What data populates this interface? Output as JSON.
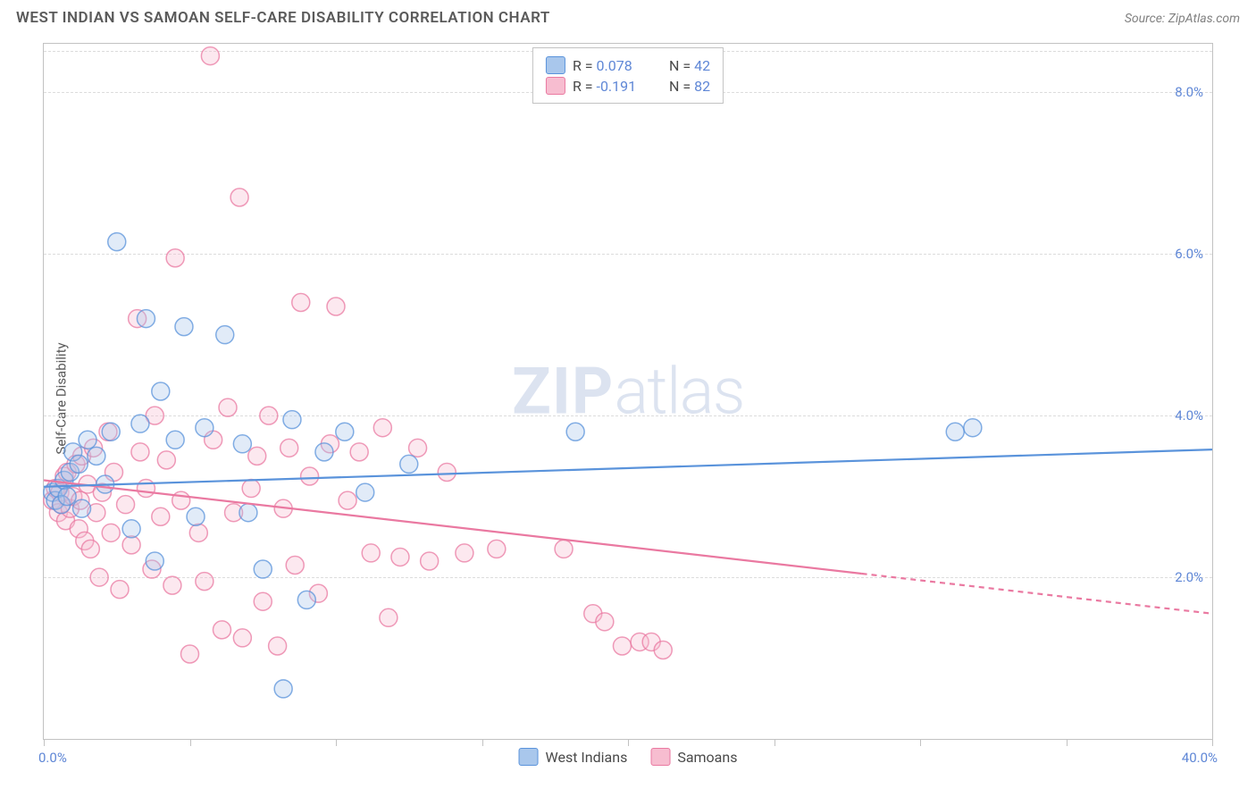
{
  "header": {
    "title": "WEST INDIAN VS SAMOAN SELF-CARE DISABILITY CORRELATION CHART",
    "source": "Source: ZipAtlas.com"
  },
  "watermark": {
    "zip": "ZIP",
    "atlas": "atlas"
  },
  "chart": {
    "type": "scatter",
    "ylabel": "Self-Care Disability",
    "background_color": "#ffffff",
    "grid_color": "#dcdcdc",
    "axis_color": "#c2c2c2",
    "tick_label_color": "#5f87d6",
    "xlim": [
      0,
      40
    ],
    "ylim": [
      0,
      8.6
    ],
    "yticks": [
      2.0,
      4.0,
      6.0,
      8.0
    ],
    "ytick_labels": [
      "2.0%",
      "4.0%",
      "6.0%",
      "8.0%"
    ],
    "xticks": [
      0,
      5,
      10,
      15,
      20,
      25,
      30,
      35,
      40
    ],
    "xlabel_start": "0.0%",
    "xlabel_end": "40.0%",
    "marker_radius": 10,
    "marker_fill_opacity": 0.35,
    "marker_stroke_width": 1.5,
    "line_width": 2.2
  },
  "series": {
    "blue": {
      "label": "West Indians",
      "r_label": "R = ",
      "r_value": "0.078",
      "n_label": "N = ",
      "n_value": "42",
      "color": "#5a93db",
      "fill": "#a9c7ec",
      "trend": {
        "y_at_x0": 3.12,
        "y_at_x40": 3.58,
        "x_max_solid": 40
      },
      "points": [
        [
          0.3,
          3.05
        ],
        [
          0.4,
          2.95
        ],
        [
          0.5,
          3.1
        ],
        [
          0.6,
          2.9
        ],
        [
          0.7,
          3.2
        ],
        [
          0.8,
          3.0
        ],
        [
          0.9,
          3.3
        ],
        [
          1.0,
          3.55
        ],
        [
          1.2,
          3.4
        ],
        [
          1.3,
          2.85
        ],
        [
          1.5,
          3.7
        ],
        [
          1.8,
          3.5
        ],
        [
          2.1,
          3.15
        ],
        [
          2.3,
          3.8
        ],
        [
          2.5,
          6.15
        ],
        [
          3.0,
          2.6
        ],
        [
          3.3,
          3.9
        ],
        [
          3.5,
          5.2
        ],
        [
          3.8,
          2.2
        ],
        [
          4.0,
          4.3
        ],
        [
          4.5,
          3.7
        ],
        [
          4.8,
          5.1
        ],
        [
          5.2,
          2.75
        ],
        [
          5.5,
          3.85
        ],
        [
          6.2,
          5.0
        ],
        [
          6.8,
          3.65
        ],
        [
          7.0,
          2.8
        ],
        [
          7.5,
          2.1
        ],
        [
          8.2,
          0.62
        ],
        [
          8.5,
          3.95
        ],
        [
          9.0,
          1.72
        ],
        [
          9.6,
          3.55
        ],
        [
          10.3,
          3.8
        ],
        [
          11.0,
          3.05
        ],
        [
          12.5,
          3.4
        ],
        [
          18.2,
          3.8
        ],
        [
          31.2,
          3.8
        ],
        [
          31.8,
          3.85
        ]
      ]
    },
    "pink": {
      "label": "Samoans",
      "r_label": "R = ",
      "r_value": "-0.191",
      "n_label": "N = ",
      "n_value": "82",
      "color": "#ea79a1",
      "fill": "#f7bdd0",
      "trend": {
        "y_at_x0": 3.2,
        "y_at_x40": 1.55,
        "x_max_solid": 28
      },
      "points": [
        [
          0.3,
          2.95
        ],
        [
          0.4,
          3.1
        ],
        [
          0.5,
          2.8
        ],
        [
          0.55,
          3.05
        ],
        [
          0.6,
          2.9
        ],
        [
          0.7,
          3.25
        ],
        [
          0.75,
          2.7
        ],
        [
          0.8,
          3.3
        ],
        [
          0.9,
          2.85
        ],
        [
          1.0,
          3.0
        ],
        [
          1.1,
          3.4
        ],
        [
          1.2,
          2.6
        ],
        [
          1.25,
          2.95
        ],
        [
          1.3,
          3.5
        ],
        [
          1.4,
          2.45
        ],
        [
          1.5,
          3.15
        ],
        [
          1.6,
          2.35
        ],
        [
          1.7,
          3.6
        ],
        [
          1.8,
          2.8
        ],
        [
          1.9,
          2.0
        ],
        [
          2.0,
          3.05
        ],
        [
          2.2,
          3.8
        ],
        [
          2.3,
          2.55
        ],
        [
          2.4,
          3.3
        ],
        [
          2.6,
          1.85
        ],
        [
          2.8,
          2.9
        ],
        [
          3.0,
          2.4
        ],
        [
          3.2,
          5.2
        ],
        [
          3.3,
          3.55
        ],
        [
          3.5,
          3.1
        ],
        [
          3.7,
          2.1
        ],
        [
          3.8,
          4.0
        ],
        [
          4.0,
          2.75
        ],
        [
          4.2,
          3.45
        ],
        [
          4.4,
          1.9
        ],
        [
          4.5,
          5.95
        ],
        [
          4.7,
          2.95
        ],
        [
          5.0,
          1.05
        ],
        [
          5.3,
          2.55
        ],
        [
          5.5,
          1.95
        ],
        [
          5.7,
          8.45
        ],
        [
          5.8,
          3.7
        ],
        [
          6.1,
          1.35
        ],
        [
          6.3,
          4.1
        ],
        [
          6.5,
          2.8
        ],
        [
          6.7,
          6.7
        ],
        [
          6.8,
          1.25
        ],
        [
          7.1,
          3.1
        ],
        [
          7.3,
          3.5
        ],
        [
          7.5,
          1.7
        ],
        [
          7.7,
          4.0
        ],
        [
          8.0,
          1.15
        ],
        [
          8.2,
          2.85
        ],
        [
          8.4,
          3.6
        ],
        [
          8.6,
          2.15
        ],
        [
          8.8,
          5.4
        ],
        [
          9.1,
          3.25
        ],
        [
          9.4,
          1.8
        ],
        [
          9.8,
          3.65
        ],
        [
          10.0,
          5.35
        ],
        [
          10.4,
          2.95
        ],
        [
          10.8,
          3.55
        ],
        [
          11.2,
          2.3
        ],
        [
          11.6,
          3.85
        ],
        [
          11.8,
          1.5
        ],
        [
          12.2,
          2.25
        ],
        [
          12.8,
          3.6
        ],
        [
          13.2,
          2.2
        ],
        [
          13.8,
          3.3
        ],
        [
          14.4,
          2.3
        ],
        [
          15.5,
          2.35
        ],
        [
          17.8,
          2.35
        ],
        [
          18.8,
          1.55
        ],
        [
          19.2,
          1.45
        ],
        [
          19.8,
          1.15
        ],
        [
          20.4,
          1.2
        ],
        [
          20.8,
          1.2
        ],
        [
          21.2,
          1.1
        ]
      ]
    }
  }
}
